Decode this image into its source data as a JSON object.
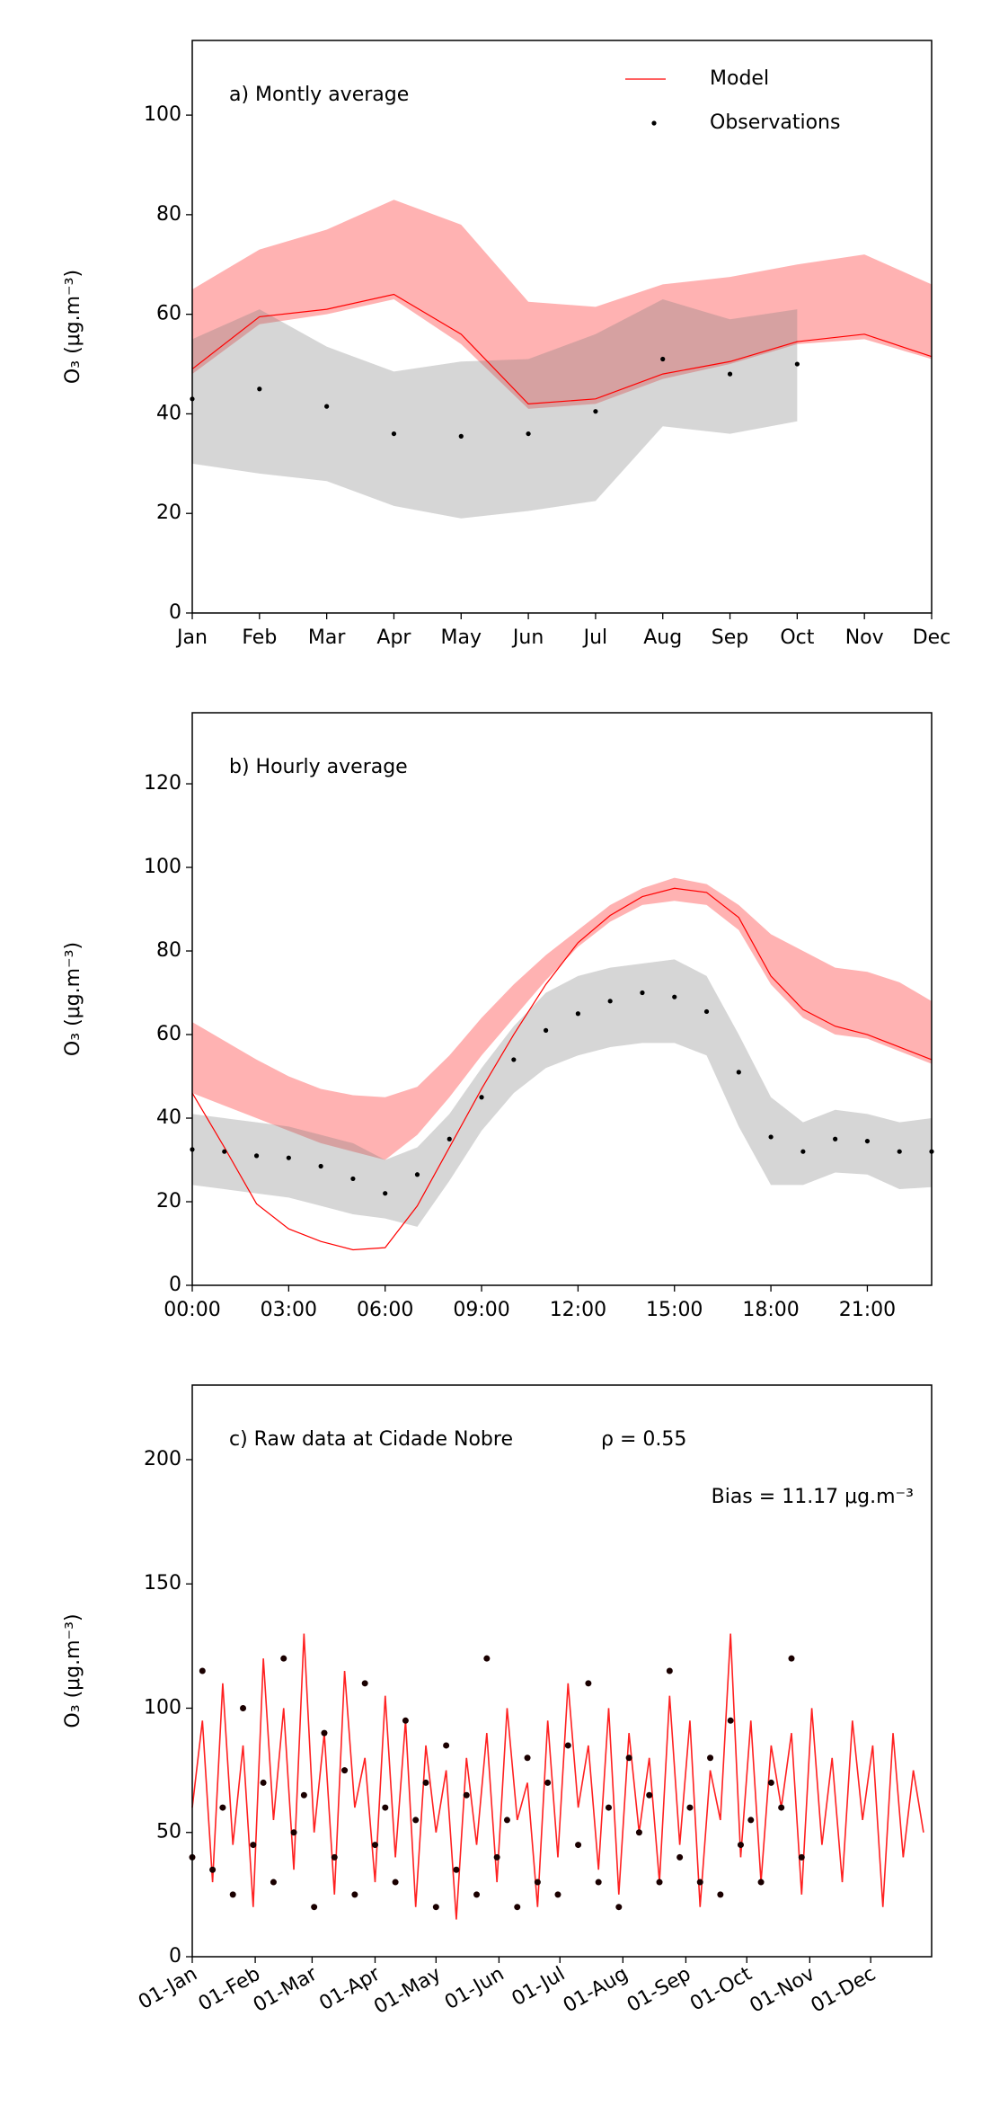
{
  "chart_data": [
    {
      "type": "line",
      "title": "a) Montly average",
      "ylabel": "O₃ (μg.m⁻³)",
      "categories": [
        "Jan",
        "Feb",
        "Mar",
        "Apr",
        "May",
        "Jun",
        "Jul",
        "Aug",
        "Sep",
        "Oct",
        "Nov",
        "Dec"
      ],
      "ylim": [
        0,
        115
      ],
      "yticks": [
        0,
        20,
        40,
        60,
        80,
        100
      ],
      "legend": "upper right",
      "series": [
        {
          "name": "Model",
          "color": "#ff0000",
          "band_color": "#ff0000",
          "values": [
            49,
            59.5,
            61,
            64,
            56,
            42,
            43,
            48,
            50.5,
            54.5,
            56,
            51.5
          ],
          "upper": [
            65,
            73,
            77,
            83,
            78,
            62.5,
            61.5,
            66,
            67.5,
            70,
            72,
            66
          ],
          "lower": [
            48,
            58,
            60,
            63,
            54,
            41,
            42,
            47,
            50,
            54,
            55,
            51
          ]
        },
        {
          "name": "Observations",
          "color": "#000000",
          "band_color": "#808080",
          "marker": "dot",
          "values": [
            43,
            45,
            41.5,
            36,
            35.5,
            36,
            40.5,
            51,
            48,
            50,
            null,
            null
          ],
          "upper": [
            55,
            61,
            53.5,
            48.5,
            50.5,
            51,
            56,
            63,
            59,
            61,
            null,
            null
          ],
          "lower": [
            30,
            28,
            26.5,
            21.5,
            19,
            20.5,
            22.5,
            37.5,
            36,
            38.5,
            null,
            null
          ]
        }
      ]
    },
    {
      "type": "line",
      "title": "b) Hourly average",
      "ylabel": "O₃ (μg.m⁻³)",
      "x": [
        0,
        1,
        2,
        3,
        4,
        5,
        6,
        7,
        8,
        9,
        10,
        11,
        12,
        13,
        14,
        15,
        16,
        17,
        18,
        19,
        20,
        21,
        22,
        23
      ],
      "xlim": [
        0,
        23
      ],
      "xticks": [
        {
          "value": 0,
          "label": "00:00"
        },
        {
          "value": 3,
          "label": "03:00"
        },
        {
          "value": 6,
          "label": "06:00"
        },
        {
          "value": 9,
          "label": "09:00"
        },
        {
          "value": 12,
          "label": "12:00"
        },
        {
          "value": 15,
          "label": "15:00"
        },
        {
          "value": 18,
          "label": "18:00"
        },
        {
          "value": 21,
          "label": "21:00"
        }
      ],
      "ylim": [
        0,
        137
      ],
      "yticks": [
        0,
        20,
        40,
        60,
        80,
        100,
        120
      ],
      "series": [
        {
          "color": "#ff0000",
          "band_color": "#ff0000",
          "values": [
            46,
            33,
            19.5,
            13.5,
            10.5,
            8.5,
            9,
            19,
            33,
            47,
            60,
            72,
            82,
            88.5,
            93,
            95,
            94,
            88,
            74,
            66,
            62,
            60,
            57,
            54
          ],
          "upper": [
            63,
            58.5,
            54,
            50,
            47,
            45.5,
            45,
            47.5,
            55,
            64,
            72,
            79,
            85,
            91,
            95,
            97.5,
            96,
            91,
            84,
            80,
            76,
            75,
            72.5,
            68
          ],
          "lower": [
            46,
            43,
            40,
            37,
            34,
            32,
            30,
            36,
            45,
            55,
            64,
            73,
            81,
            87,
            91,
            92,
            91,
            85,
            72,
            64,
            60,
            59,
            56,
            53
          ]
        },
        {
          "color": "#000000",
          "band_color": "#808080",
          "marker": "dot",
          "values": [
            32.5,
            32,
            31,
            30.5,
            28.5,
            25.5,
            22,
            26.5,
            35,
            45,
            54,
            61,
            65,
            68,
            70,
            69,
            65.5,
            51,
            35.5,
            32,
            35,
            34.5,
            32,
            32
          ],
          "upper": [
            41,
            40,
            39,
            38,
            36,
            34,
            30,
            33,
            41,
            52,
            62,
            70,
            74,
            76,
            77,
            78,
            74,
            60,
            45,
            39,
            42,
            41,
            39,
            40
          ],
          "lower": [
            24,
            23,
            22,
            21,
            19,
            17,
            16,
            14,
            25,
            37,
            46,
            52,
            55,
            57,
            58,
            58,
            55,
            38,
            24,
            24,
            27,
            26.5,
            23,
            23.5
          ]
        }
      ]
    },
    {
      "type": "line",
      "title": "c) Raw data at Cidade Nobre",
      "ylabel": "O₃ (μg.m⁻³)",
      "annotations": [
        "ρ = 0.55",
        "Bias = 11.17 μg.m⁻³"
      ],
      "x": [
        "01-Jan",
        "06-Jan",
        "11-Jan",
        "16-Jan",
        "21-Jan",
        "26-Jan",
        "31-Jan",
        "05-Feb",
        "10-Feb",
        "15-Feb",
        "20-Feb",
        "25-Feb",
        "02-Mar",
        "07-Mar",
        "12-Mar",
        "17-Mar",
        "22-Mar",
        "27-Mar",
        "01-Apr",
        "06-Apr",
        "11-Apr",
        "16-Apr",
        "21-Apr",
        "26-Apr",
        "01-May",
        "06-May",
        "11-May",
        "16-May",
        "21-May",
        "26-May",
        "31-May",
        "05-Jun",
        "10-Jun",
        "15-Jun",
        "20-Jun",
        "25-Jun",
        "30-Jun",
        "05-Jul",
        "10-Jul",
        "15-Jul",
        "20-Jul",
        "25-Jul",
        "30-Jul",
        "04-Aug",
        "09-Aug",
        "14-Aug",
        "19-Aug",
        "24-Aug",
        "29-Aug",
        "03-Sep",
        "08-Sep",
        "13-Sep",
        "18-Sep",
        "23-Sep",
        "28-Sep",
        "03-Oct",
        "08-Oct",
        "13-Oct",
        "18-Oct",
        "23-Oct",
        "28-Oct",
        "02-Nov",
        "07-Nov",
        "12-Nov",
        "17-Nov",
        "22-Nov",
        "27-Nov",
        "02-Dec",
        "07-Dec",
        "12-Dec",
        "17-Dec",
        "22-Dec",
        "27-Dec"
      ],
      "xlim": [
        "01-Jan",
        "31-Dec"
      ],
      "xticks": [
        "01-Jan",
        "01-Feb",
        "01-Mar",
        "01-Apr",
        "01-May",
        "01-Jun",
        "01-Jul",
        "01-Aug",
        "01-Sep",
        "01-Oct",
        "01-Nov",
        "01-Dec"
      ],
      "xtick_rotation": 30,
      "ylim": [
        0,
        230
      ],
      "yticks": [
        0,
        50,
        100,
        150,
        200
      ],
      "series": [
        {
          "color": "#ff2020",
          "values": [
            60,
            95,
            30,
            110,
            45,
            85,
            20,
            120,
            55,
            100,
            35,
            130,
            50,
            90,
            25,
            115,
            60,
            80,
            30,
            105,
            40,
            95,
            20,
            85,
            50,
            75,
            15,
            80,
            45,
            90,
            30,
            100,
            55,
            70,
            20,
            95,
            40,
            110,
            60,
            85,
            35,
            100,
            25,
            90,
            50,
            80,
            30,
            105,
            45,
            95,
            20,
            75,
            55,
            130,
            40,
            95,
            30,
            85,
            60,
            90,
            25,
            100,
            45,
            80,
            30,
            95,
            55,
            85,
            20,
            90,
            40,
            75,
            50
          ]
        },
        {
          "color": "#1a0000",
          "marker": "dot",
          "values": [
            40,
            115,
            35,
            60,
            25,
            100,
            45,
            70,
            30,
            120,
            50,
            65,
            20,
            90,
            40,
            75,
            25,
            110,
            45,
            60,
            30,
            95,
            55,
            70,
            20,
            85,
            35,
            65,
            25,
            120,
            40,
            55,
            20,
            80,
            30,
            70,
            25,
            85,
            45,
            110,
            30,
            60,
            20,
            80,
            50,
            65,
            30,
            115,
            40,
            60,
            30,
            80,
            25,
            95,
            45,
            55,
            30,
            70,
            60,
            120,
            40,
            null,
            null,
            null,
            null,
            null,
            null,
            null,
            null,
            null,
            null,
            null,
            null
          ]
        }
      ]
    }
  ]
}
